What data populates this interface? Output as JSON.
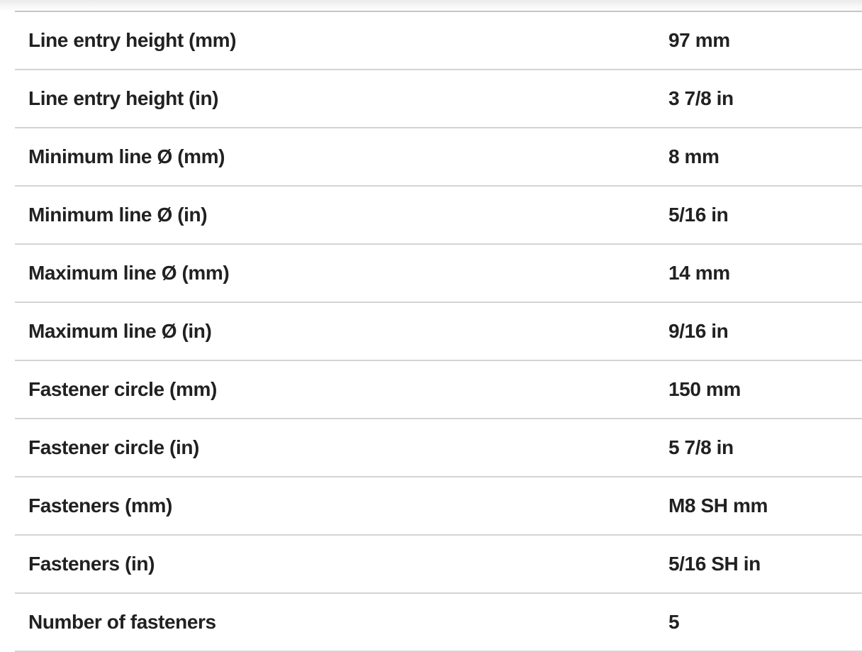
{
  "colors": {
    "text": "#212121",
    "row_divider": "#d4d4d4",
    "top_divider": "#c5c5c5",
    "background": "#ffffff"
  },
  "spec_table": {
    "rows": [
      {
        "label": "Line entry height (mm)",
        "value": "97 mm"
      },
      {
        "label": "Line entry height (in)",
        "value": "3 7/8 in"
      },
      {
        "label": "Minimum line Ø (mm)",
        "value": "8 mm"
      },
      {
        "label": "Minimum line Ø (in)",
        "value": "5/16 in"
      },
      {
        "label": "Maximum line Ø (mm)",
        "value": "14 mm"
      },
      {
        "label": "Maximum line Ø (in)",
        "value": "9/16 in"
      },
      {
        "label": "Fastener circle (mm)",
        "value": "150 mm"
      },
      {
        "label": "Fastener circle (in)",
        "value": "5 7/8 in"
      },
      {
        "label": "Fasteners (mm)",
        "value": "M8 SH mm"
      },
      {
        "label": "Fasteners (in)",
        "value": "5/16 SH in"
      },
      {
        "label": "Number of fasteners",
        "value": "5"
      }
    ]
  }
}
